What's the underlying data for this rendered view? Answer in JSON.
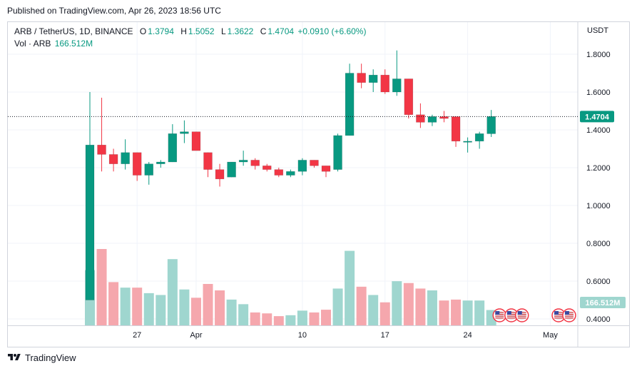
{
  "header": {
    "published_text": "Published on TradingView.com, Apr 26, 2023 18:56 UTC"
  },
  "legend": {
    "symbol": "ARB / TetherUS, 1D, BINANCE",
    "open_key": "O",
    "open": "1.3794",
    "high_key": "H",
    "high": "1.5052",
    "low_key": "L",
    "low": "1.3622",
    "close_key": "C",
    "close": "1.4704",
    "change": "+0.0910 (+6.60%)",
    "vol_label": "Vol · ARB",
    "vol_value": "166.512M"
  },
  "footer": {
    "brand": "TradingView"
  },
  "colors": {
    "up": "#089981",
    "down": "#f23645",
    "up_vol": "#9fd6cf",
    "down_vol": "#f5a7ad",
    "grid": "#f0f3fa",
    "axis_text": "#131722"
  },
  "chart_data": {
    "type": "candlestick",
    "title": "ARB / TetherUS, 1D, BINANCE",
    "price_axis_label": "USDT",
    "yticks": [
      "1.8000",
      "1.6000",
      "1.4000",
      "1.2000",
      "1.0000",
      "0.8000",
      "0.6000",
      "0.4000"
    ],
    "ylim": [
      0.32,
      1.9
    ],
    "xtick_labels": [
      {
        "index": 4,
        "label": "27"
      },
      {
        "index": 9,
        "label": "Apr"
      },
      {
        "index": 18,
        "label": "10"
      },
      {
        "index": 25,
        "label": "17"
      },
      {
        "index": 32,
        "label": "24"
      },
      {
        "index": 39,
        "label": "May"
      }
    ],
    "last_price_label": "1.4704",
    "last_price": 1.4704,
    "last_volume_label": "166.512M",
    "volume_max_M": 900,
    "candles": [
      {
        "date": "Mar 23",
        "o": 0.5,
        "h": 1.6,
        "l": 0.5,
        "c": 1.32,
        "v": 600
      },
      {
        "date": "Mar 24",
        "o": 1.32,
        "h": 1.57,
        "l": 1.18,
        "c": 1.27,
        "v": 830
      },
      {
        "date": "Mar 25",
        "o": 1.27,
        "h": 1.3,
        "l": 1.18,
        "c": 1.22,
        "v": 470
      },
      {
        "date": "Mar 26",
        "o": 1.22,
        "h": 1.35,
        "l": 1.19,
        "c": 1.28,
        "v": 410
      },
      {
        "date": "Mar 27",
        "o": 1.28,
        "h": 1.28,
        "l": 1.13,
        "c": 1.16,
        "v": 410
      },
      {
        "date": "Mar 28",
        "o": 1.16,
        "h": 1.23,
        "l": 1.11,
        "c": 1.22,
        "v": 350
      },
      {
        "date": "Mar 29",
        "o": 1.22,
        "h": 1.24,
        "l": 1.2,
        "c": 1.23,
        "v": 330
      },
      {
        "date": "Mar 30",
        "o": 1.23,
        "h": 1.43,
        "l": 1.23,
        "c": 1.38,
        "v": 720
      },
      {
        "date": "Mar 31",
        "o": 1.38,
        "h": 1.45,
        "l": 1.33,
        "c": 1.39,
        "v": 390
      },
      {
        "date": "Apr 1",
        "o": 1.39,
        "h": 1.39,
        "l": 1.3,
        "c": 1.29,
        "v": 300
      },
      {
        "date": "Apr 2",
        "o": 1.28,
        "h": 1.28,
        "l": 1.15,
        "c": 1.19,
        "v": 450
      },
      {
        "date": "Apr 3",
        "o": 1.19,
        "h": 1.22,
        "l": 1.1,
        "c": 1.14,
        "v": 380
      },
      {
        "date": "Apr 4",
        "o": 1.15,
        "h": 1.23,
        "l": 1.15,
        "c": 1.23,
        "v": 280
      },
      {
        "date": "Apr 5",
        "o": 1.23,
        "h": 1.29,
        "l": 1.21,
        "c": 1.24,
        "v": 230
      },
      {
        "date": "Apr 6",
        "o": 1.24,
        "h": 1.25,
        "l": 1.19,
        "c": 1.21,
        "v": 140
      },
      {
        "date": "Apr 7",
        "o": 1.21,
        "h": 1.22,
        "l": 1.18,
        "c": 1.19,
        "v": 130
      },
      {
        "date": "Apr 8",
        "o": 1.19,
        "h": 1.2,
        "l": 1.15,
        "c": 1.16,
        "v": 100
      },
      {
        "date": "Apr 9",
        "o": 1.16,
        "h": 1.19,
        "l": 1.15,
        "c": 1.18,
        "v": 110
      },
      {
        "date": "Apr 10",
        "o": 1.18,
        "h": 1.25,
        "l": 1.16,
        "c": 1.24,
        "v": 160
      },
      {
        "date": "Apr 11",
        "o": 1.24,
        "h": 1.24,
        "l": 1.2,
        "c": 1.21,
        "v": 140
      },
      {
        "date": "Apr 12",
        "o": 1.21,
        "h": 1.21,
        "l": 1.15,
        "c": 1.18,
        "v": 170
      },
      {
        "date": "Apr 13",
        "o": 1.19,
        "h": 1.38,
        "l": 1.18,
        "c": 1.37,
        "v": 400
      },
      {
        "date": "Apr 14",
        "o": 1.37,
        "h": 1.75,
        "l": 1.37,
        "c": 1.7,
        "v": 810
      },
      {
        "date": "Apr 15",
        "o": 1.7,
        "h": 1.75,
        "l": 1.62,
        "c": 1.65,
        "v": 420
      },
      {
        "date": "Apr 16",
        "o": 1.65,
        "h": 1.72,
        "l": 1.6,
        "c": 1.69,
        "v": 330
      },
      {
        "date": "Apr 17",
        "o": 1.69,
        "h": 1.72,
        "l": 1.59,
        "c": 1.6,
        "v": 250
      },
      {
        "date": "Apr 18",
        "o": 1.6,
        "h": 1.82,
        "l": 1.58,
        "c": 1.67,
        "v": 480
      },
      {
        "date": "Apr 19",
        "o": 1.67,
        "h": 1.67,
        "l": 1.46,
        "c": 1.48,
        "v": 460
      },
      {
        "date": "Apr 20",
        "o": 1.48,
        "h": 1.54,
        "l": 1.41,
        "c": 1.44,
        "v": 400
      },
      {
        "date": "Apr 21",
        "o": 1.44,
        "h": 1.48,
        "l": 1.42,
        "c": 1.47,
        "v": 380
      },
      {
        "date": "Apr 22",
        "o": 1.47,
        "h": 1.5,
        "l": 1.44,
        "c": 1.46,
        "v": 270
      },
      {
        "date": "Apr 23",
        "o": 1.47,
        "h": 1.47,
        "l": 1.31,
        "c": 1.34,
        "v": 280
      },
      {
        "date": "Apr 24",
        "o": 1.34,
        "h": 1.36,
        "l": 1.28,
        "c": 1.34,
        "v": 270
      },
      {
        "date": "Apr 25",
        "o": 1.34,
        "h": 1.39,
        "l": 1.3,
        "c": 1.38,
        "v": 270
      },
      {
        "date": "Apr 26",
        "o": 1.3794,
        "h": 1.5052,
        "l": 1.3622,
        "c": 1.4704,
        "v": 166.512
      }
    ],
    "event_markers": [
      {
        "index": 34.7,
        "icon": "us-flag-icon"
      },
      {
        "index": 35.7,
        "icon": "us-flag-icon"
      },
      {
        "index": 36.6,
        "icon": "us-flag-icon"
      },
      {
        "index": 39.7,
        "icon": "us-flag-icon"
      },
      {
        "index": 40.6,
        "icon": "us-flag-icon"
      }
    ]
  }
}
